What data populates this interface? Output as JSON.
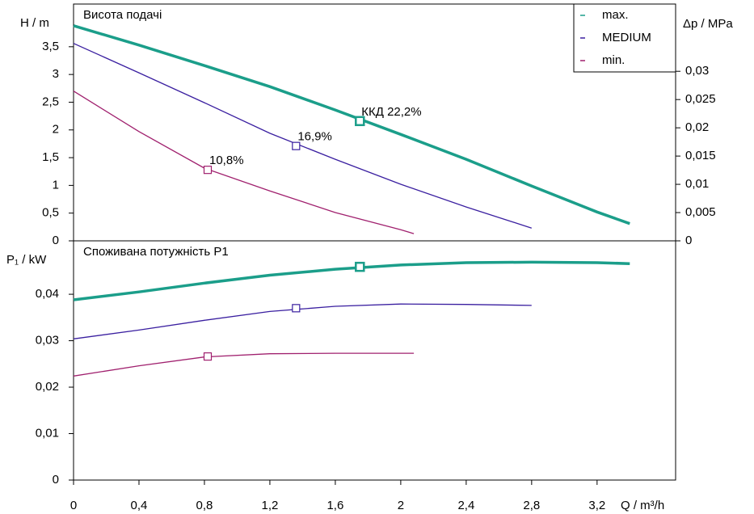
{
  "chart_data": [
    {
      "type": "line",
      "title": "Висота подачі",
      "ylabel": "H / m",
      "y2label": "Δp / MPa",
      "xlim": [
        0,
        3.68
      ],
      "ylim": [
        0,
        4.27
      ],
      "y2lim": [
        0,
        0.0419
      ],
      "yticks": [
        0,
        {
          "value": 0.5,
          "label": "0,5"
        },
        1,
        {
          "value": 1.5,
          "label": "1,5"
        },
        2,
        {
          "value": 2.5,
          "label": "2,5"
        },
        3,
        {
          "value": 3.5,
          "label": "3,5"
        }
      ],
      "y2ticks": [
        0,
        {
          "value": 0.005,
          "label": "0,005"
        },
        {
          "value": 0.01,
          "label": "0,01"
        },
        {
          "value": 0.015,
          "label": "0,015"
        },
        {
          "value": 0.02,
          "label": "0,02"
        },
        {
          "value": 0.025,
          "label": "0,025"
        },
        {
          "value": 0.03,
          "label": "0,03"
        }
      ],
      "legend": "upper right",
      "series": [
        {
          "name": "max.",
          "color": "#1b9e8a",
          "x": [
            0,
            0.4,
            0.8,
            1.2,
            1.6,
            2.0,
            2.4,
            2.8,
            3.2,
            3.4
          ],
          "values": [
            3.88,
            3.53,
            3.16,
            2.78,
            2.36,
            1.92,
            1.47,
            0.99,
            0.52,
            0.31
          ],
          "point_x": 1.75,
          "point_y": 2.16,
          "point_label": "ККД  22,2%"
        },
        {
          "name": "MEDIUM",
          "color": "#3a1fa0",
          "x": [
            0,
            0.4,
            0.8,
            1.2,
            1.6,
            2.0,
            2.4,
            2.8
          ],
          "values": [
            3.56,
            3.03,
            2.49,
            1.94,
            1.47,
            1.02,
            0.61,
            0.23
          ],
          "point_x": 1.36,
          "point_y": 1.71,
          "point_label": "16,9%"
        },
        {
          "name": "min.",
          "color": "#a0206e",
          "x": [
            0,
            0.4,
            0.8,
            1.2,
            1.6,
            2.0,
            2.08
          ],
          "values": [
            2.7,
            1.97,
            1.31,
            0.9,
            0.51,
            0.2,
            0.13
          ],
          "point_x": 0.82,
          "point_y": 1.28,
          "point_label": "10,8%"
        }
      ]
    },
    {
      "type": "line",
      "title": "Споживана потужність P1",
      "ylabel": "P₁ / kW",
      "xlabel": "Q / m³/h",
      "xlim": [
        0,
        3.68
      ],
      "ylim": [
        0,
        0.0515
      ],
      "xticks": [
        0,
        {
          "value": 0.4,
          "label": "0,4"
        },
        {
          "value": 0.8,
          "label": "0,8"
        },
        {
          "value": 1.2,
          "label": "1,2"
        },
        {
          "value": 1.6,
          "label": "1,6"
        },
        2,
        {
          "value": 2.4,
          "label": "2,4"
        },
        {
          "value": 2.8,
          "label": "2,8"
        },
        {
          "value": 3.2,
          "label": "3,2"
        }
      ],
      "yticks": [
        0,
        {
          "value": 0.01,
          "label": "0,01"
        },
        {
          "value": 0.02,
          "label": "0,02"
        },
        {
          "value": 0.03,
          "label": "0,03"
        },
        {
          "value": 0.04,
          "label": "0,04"
        }
      ],
      "series": [
        {
          "color": "#1b9e8a",
          "x": [
            0,
            0.4,
            0.8,
            1.2,
            1.6,
            2.0,
            2.4,
            2.8,
            3.2,
            3.4
          ],
          "values": [
            0.0388,
            0.0405,
            0.0424,
            0.0441,
            0.0454,
            0.0463,
            0.0468,
            0.0469,
            0.0468,
            0.0466
          ],
          "point_x": 1.75,
          "point_y": 0.0459
        },
        {
          "color": "#3a1fa0",
          "x": [
            0,
            0.4,
            0.8,
            1.2,
            1.6,
            2.0,
            2.4,
            2.8
          ],
          "values": [
            0.0304,
            0.0323,
            0.0344,
            0.0363,
            0.0374,
            0.0379,
            0.0378,
            0.0376
          ],
          "point_x": 1.36,
          "point_y": 0.037
        },
        {
          "color": "#a0206e",
          "x": [
            0,
            0.4,
            0.8,
            1.2,
            1.6,
            2.0,
            2.08
          ],
          "values": [
            0.0224,
            0.0246,
            0.0265,
            0.0272,
            0.0273,
            0.0273,
            0.0273
          ],
          "point_x": 0.82,
          "point_y": 0.0266
        }
      ]
    }
  ]
}
